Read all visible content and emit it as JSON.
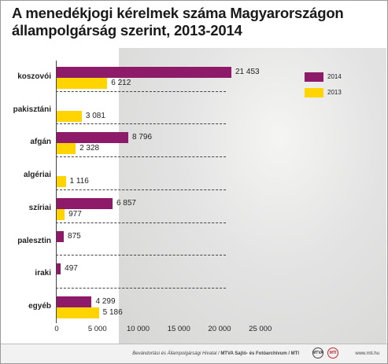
{
  "header": {
    "title_line1": "A menedékjogi kérelmek száma Magyarországon",
    "title_line2": "állampolgárság szerint, 2013-2014"
  },
  "colors": {
    "series_2014": "#8e1a6a",
    "series_2013": "#ffd400"
  },
  "chart_data": {
    "type": "bar",
    "orientation": "horizontal",
    "categories": [
      "koszovói",
      "pakisztáni",
      "afgán",
      "algériai",
      "szíriai",
      "palesztin",
      "iraki",
      "egyéb"
    ],
    "series": [
      {
        "name": "2014",
        "values": [
          21453,
          null,
          8796,
          null,
          6857,
          875,
          497,
          4299
        ]
      },
      {
        "name": "2013",
        "values": [
          6212,
          3081,
          2328,
          1116,
          977,
          null,
          null,
          5186
        ]
      }
    ],
    "value_labels": {
      "2014": [
        "21 453",
        "",
        "8 796",
        "",
        "6 857",
        "875",
        "497",
        "4 299"
      ],
      "2013": [
        "6 212",
        "3 081",
        "2 328",
        "1 116",
        "977",
        "",
        "",
        "5 186"
      ]
    },
    "xlim": [
      0,
      25000
    ],
    "x_ticks": [
      0,
      5000,
      10000,
      15000,
      20000,
      25000
    ],
    "x_tick_labels": [
      "0",
      "5 000",
      "10 000",
      "15 000",
      "20 000",
      "25 000"
    ],
    "legend_position": "top-right"
  },
  "footer": {
    "credit_prefix": "Bevándorlási és Állampolgársági Hivatal /",
    "credit_agency": "MTVA Sajtó- és Fotóarchívum / MTI",
    "logo1": "MTVA",
    "logo2": "MTI",
    "site": "www.mti.hu"
  }
}
